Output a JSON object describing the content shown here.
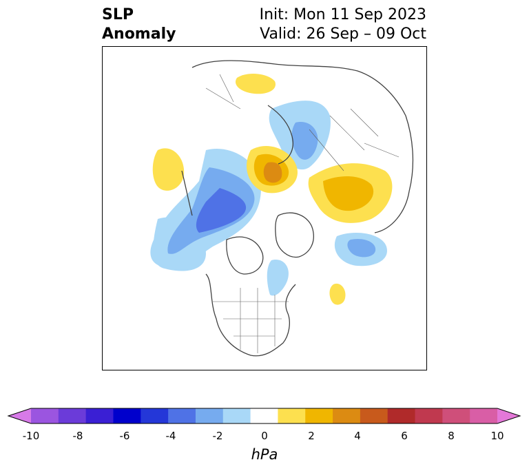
{
  "title": {
    "left_line1": "SLP",
    "left_line2": "Anomaly",
    "init": "Init: Mon 11 Sep 2023",
    "valid": "Valid: 26 Sep – 09 Oct"
  },
  "colorbar": {
    "unit": "hPa",
    "ticks": [
      "-10",
      "-8",
      "-6",
      "-4",
      "-2",
      "0",
      "2",
      "4",
      "6",
      "8",
      "10"
    ],
    "colors": [
      "#d77ae8",
      "#9b55e0",
      "#6b3bd9",
      "#3a1fd4",
      "#0000cc",
      "#2437d8",
      "#4f72e6",
      "#76abef",
      "#a9d8f7",
      "#ffffff",
      "#fde04f",
      "#f0b600",
      "#dc8b12",
      "#c85a1c",
      "#b02a2a",
      "#c0394f",
      "#cf4f7a",
      "#d95ea6",
      "#e478d8"
    ]
  },
  "map": {
    "anomaly_colors": {
      "light_blue": "#a9d8f7",
      "mid_blue": "#76abef",
      "blue": "#4f72e6",
      "yellow": "#fde04f",
      "gold": "#f0b600",
      "orange": "#dc8b12",
      "brown": "#c85a1c"
    }
  }
}
